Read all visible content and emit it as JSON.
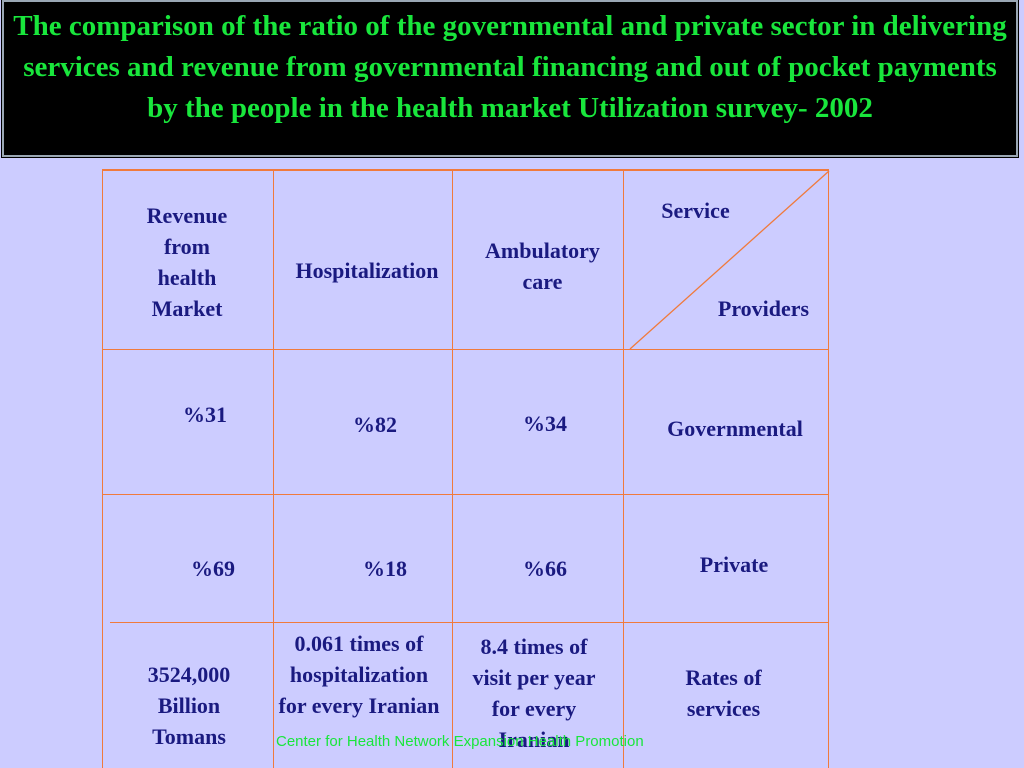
{
  "title": "The comparison of the ratio of the governmental and private sector in delivering services and revenue from governmental financing and out of pocket payments by the people in the health market Utilization survey- 2002",
  "table": {
    "header": {
      "revenue": "Revenue from health Market",
      "hospitalization": "Hospitalization",
      "ambulatory": "Ambulatory care",
      "service": "Service",
      "providers": "Providers"
    },
    "rows": {
      "governmental": {
        "revenue": "%31",
        "hospitalization": "%82",
        "ambulatory": "%34",
        "label": "Governmental"
      },
      "private": {
        "revenue": "%69",
        "hospitalization": "%18",
        "ambulatory": "%66",
        "label": "Private"
      },
      "rates": {
        "revenue": "3524,000 Billion Tomans",
        "hospitalization": "0.061 times of hospitalization for every Iranian",
        "ambulatory": "8.4 times of visit per year for every Iranian",
        "label": "Rates of services"
      }
    }
  },
  "footer": "Center for Health Network Expansion Health Promotion",
  "colors": {
    "background": "#ccccff",
    "title_bg": "#000000",
    "title_text": "#19e63c",
    "table_text": "#1a1a80",
    "grid": "#f07a3c"
  }
}
